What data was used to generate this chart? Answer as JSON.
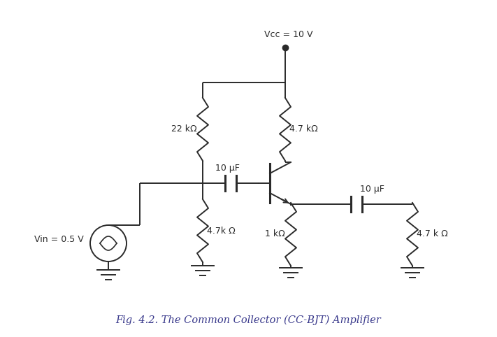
{
  "title": "Fig. 4.2. The Common Collector (CC-BJT) Amplifier",
  "title_color": "#3a3a8c",
  "vcc_label": "Vcc = 10 V",
  "vin_label": "Vin = 0.5 V",
  "r1_label": "22 kΩ",
  "r2_label": "4.7 kΩ",
  "r3_label": "4.7k Ω",
  "r4_label": "1 kΩ",
  "r5_label": "4.7 k Ω",
  "c1_label": "10 μF",
  "c2_label": "10 μF",
  "line_color": "#2a2a2a",
  "bg_color": "#ffffff",
  "figsize": [
    7.11,
    4.82
  ],
  "dpi": 100
}
